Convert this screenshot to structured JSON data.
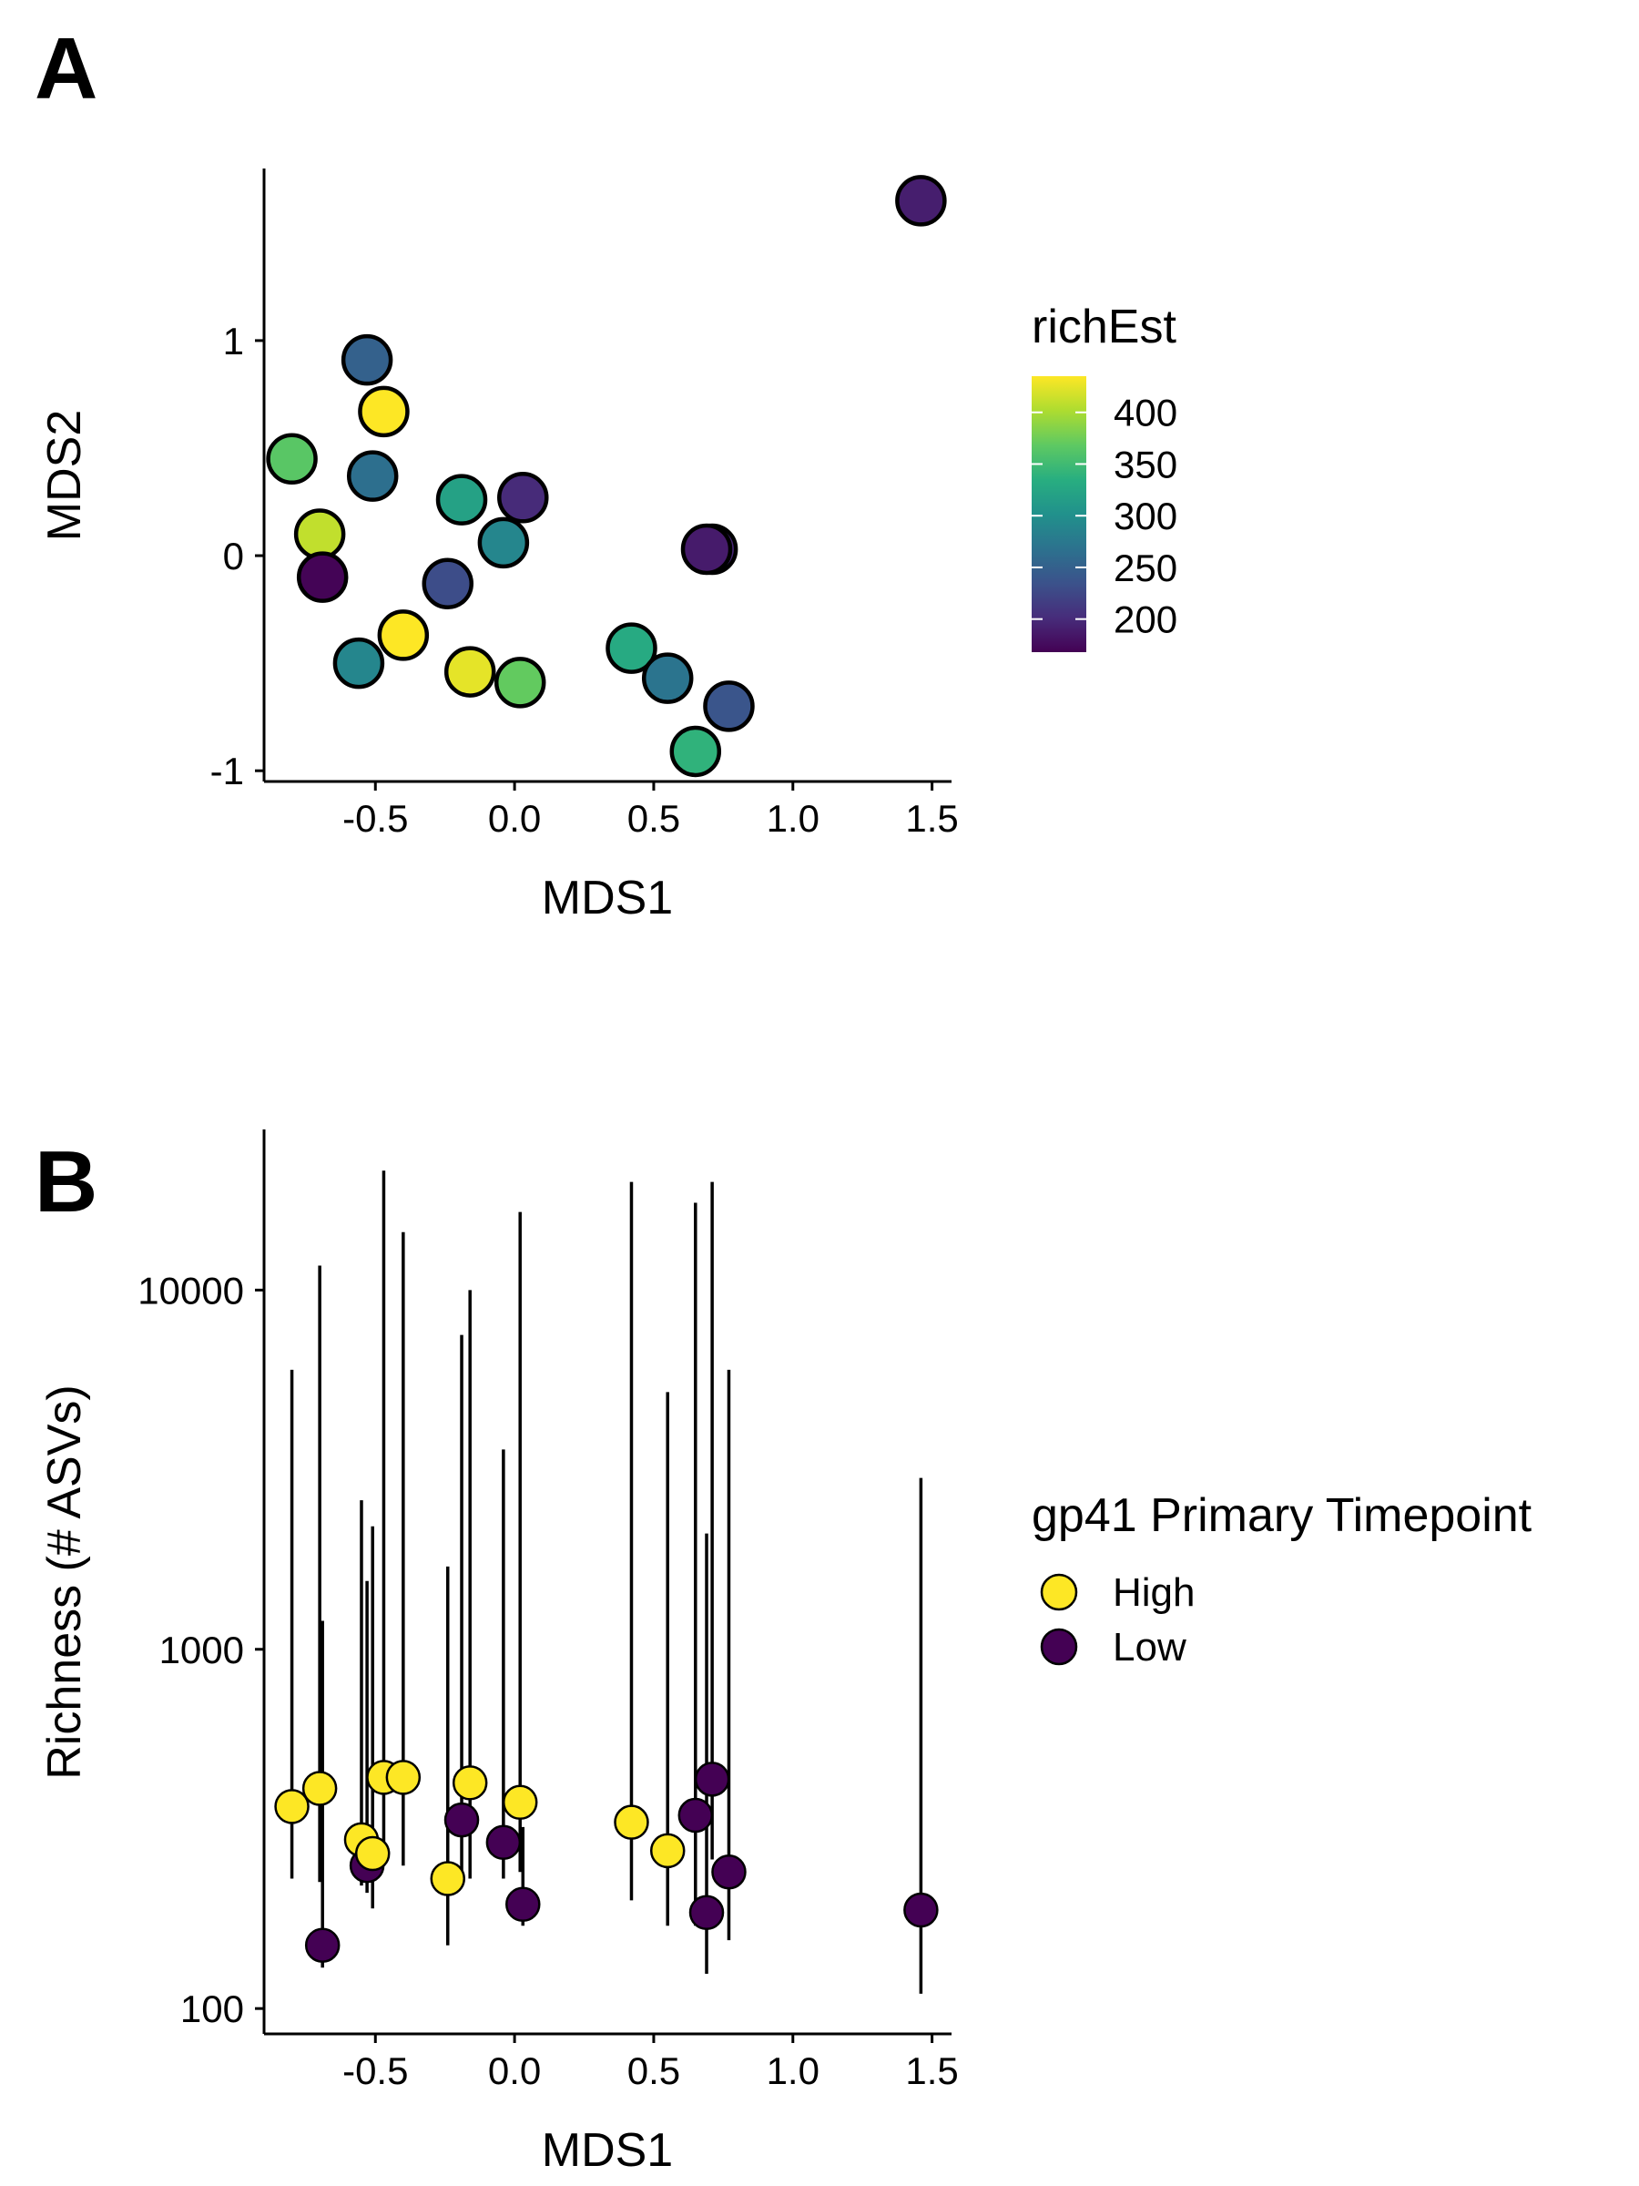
{
  "figure": {
    "panelA": {
      "letter": "A",
      "chart_data": {
        "type": "scatter",
        "xlabel": "MDS1",
        "ylabel": "MDS2",
        "xlim": [
          -0.9,
          1.57
        ],
        "ylim": [
          -1.05,
          1.8
        ],
        "xticks": [
          -0.5,
          0.0,
          0.5,
          1.0,
          1.5
        ],
        "xtick_labels": [
          "-0.5",
          "0.0",
          "0.5",
          "1.0",
          "1.5"
        ],
        "yticks": [
          -1,
          0,
          1
        ],
        "ytick_labels": [
          "-1",
          "0",
          "1"
        ],
        "grid": false,
        "legend": {
          "title": "richEst",
          "type": "colorbar",
          "palette": "viridis",
          "range": [
            168,
            435
          ],
          "breaks": [
            400,
            350,
            300,
            250,
            200
          ],
          "break_labels": [
            "400",
            "350",
            "300",
            "250",
            "200"
          ],
          "placement": "right"
        },
        "points": [
          {
            "x": -0.8,
            "y": 0.45,
            "richEst": 365
          },
          {
            "x": -0.7,
            "y": 0.1,
            "richEst": 410
          },
          {
            "x": -0.69,
            "y": -0.1,
            "richEst": 170
          },
          {
            "x": -0.53,
            "y": 0.91,
            "richEst": 250
          },
          {
            "x": -0.47,
            "y": 0.67,
            "richEst": 435
          },
          {
            "x": -0.51,
            "y": 0.37,
            "richEst": 265
          },
          {
            "x": -0.56,
            "y": -0.5,
            "richEst": 290
          },
          {
            "x": -0.4,
            "y": -0.37,
            "richEst": 438
          },
          {
            "x": -0.24,
            "y": -0.13,
            "richEst": 230
          },
          {
            "x": -0.19,
            "y": 0.26,
            "richEst": 320
          },
          {
            "x": -0.16,
            "y": -0.54,
            "richEst": 425
          },
          {
            "x": -0.04,
            "y": 0.06,
            "richEst": 290
          },
          {
            "x": 0.02,
            "y": -0.59,
            "richEst": 370
          },
          {
            "x": 0.03,
            "y": 0.27,
            "richEst": 200
          },
          {
            "x": 0.42,
            "y": -0.43,
            "richEst": 330
          },
          {
            "x": 0.55,
            "y": -0.57,
            "richEst": 270
          },
          {
            "x": 0.65,
            "y": -0.91,
            "richEst": 340
          },
          {
            "x": 0.71,
            "y": 0.03,
            "richEst": 195
          },
          {
            "x": 0.69,
            "y": 0.03,
            "richEst": 188
          },
          {
            "x": 0.77,
            "y": -0.7,
            "richEst": 238
          },
          {
            "x": 1.46,
            "y": 1.65,
            "richEst": 190
          }
        ]
      }
    },
    "panelB": {
      "letter": "B",
      "chart_data": {
        "type": "scatter",
        "xlabel": "MDS1",
        "ylabel": "Richness (# ASVs)",
        "xlim": [
          -0.9,
          1.57
        ],
        "ylim": [
          85,
          28000
        ],
        "yscale": "log",
        "xticks": [
          -0.5,
          0.0,
          0.5,
          1.0,
          1.5
        ],
        "xtick_labels": [
          "-0.5",
          "0.0",
          "0.5",
          "1.0",
          "1.5"
        ],
        "yticks": [
          100,
          1000,
          10000
        ],
        "ytick_labels": [
          "100",
          "1000",
          "10000"
        ],
        "grid": false,
        "legend": {
          "title": "gp41 Primary Timepoint",
          "placement": "right",
          "entries": [
            {
              "label": "High",
              "color": "#FDE725"
            },
            {
              "label": "Low",
              "color": "#440154"
            }
          ]
        },
        "points": [
          {
            "x": -0.8,
            "y": 365,
            "lower": 230,
            "upper": 6000,
            "group": "High"
          },
          {
            "x": -0.7,
            "y": 410,
            "lower": 225,
            "upper": 11700,
            "group": "High"
          },
          {
            "x": -0.69,
            "y": 150,
            "lower": 130,
            "upper": 1200,
            "group": "Low"
          },
          {
            "x": -0.55,
            "y": 295,
            "lower": 220,
            "upper": 2600,
            "group": "High"
          },
          {
            "x": -0.53,
            "y": 250,
            "lower": 210,
            "upper": 1550,
            "group": "Low"
          },
          {
            "x": -0.51,
            "y": 270,
            "lower": 190,
            "upper": 2200,
            "group": "High"
          },
          {
            "x": -0.47,
            "y": 440,
            "lower": 250,
            "upper": 21500,
            "group": "High"
          },
          {
            "x": -0.4,
            "y": 440,
            "lower": 250,
            "upper": 14500,
            "group": "High"
          },
          {
            "x": -0.24,
            "y": 230,
            "lower": 150,
            "upper": 1700,
            "group": "High"
          },
          {
            "x": -0.19,
            "y": 335,
            "lower": 230,
            "upper": 7500,
            "group": "Low"
          },
          {
            "x": -0.16,
            "y": 425,
            "lower": 230,
            "upper": 10000,
            "group": "High"
          },
          {
            "x": -0.04,
            "y": 290,
            "lower": 230,
            "upper": 3600,
            "group": "Low"
          },
          {
            "x": 0.02,
            "y": 375,
            "lower": 240,
            "upper": 16500,
            "group": "High"
          },
          {
            "x": 0.03,
            "y": 195,
            "lower": 170,
            "upper": 320,
            "group": "Low"
          },
          {
            "x": 0.42,
            "y": 330,
            "lower": 200,
            "upper": 20000,
            "group": "High"
          },
          {
            "x": 0.55,
            "y": 275,
            "lower": 170,
            "upper": 5200,
            "group": "High"
          },
          {
            "x": 0.65,
            "y": 345,
            "lower": 170,
            "upper": 17500,
            "group": "Low"
          },
          {
            "x": 0.69,
            "y": 185,
            "lower": 125,
            "upper": 2100,
            "group": "Low"
          },
          {
            "x": 0.71,
            "y": 435,
            "lower": 260,
            "upper": 20000,
            "group": "Low"
          },
          {
            "x": 0.77,
            "y": 240,
            "lower": 155,
            "upper": 6000,
            "group": "Low"
          },
          {
            "x": 1.46,
            "y": 188,
            "lower": 110,
            "upper": 3000,
            "group": "Low"
          }
        ]
      }
    }
  }
}
